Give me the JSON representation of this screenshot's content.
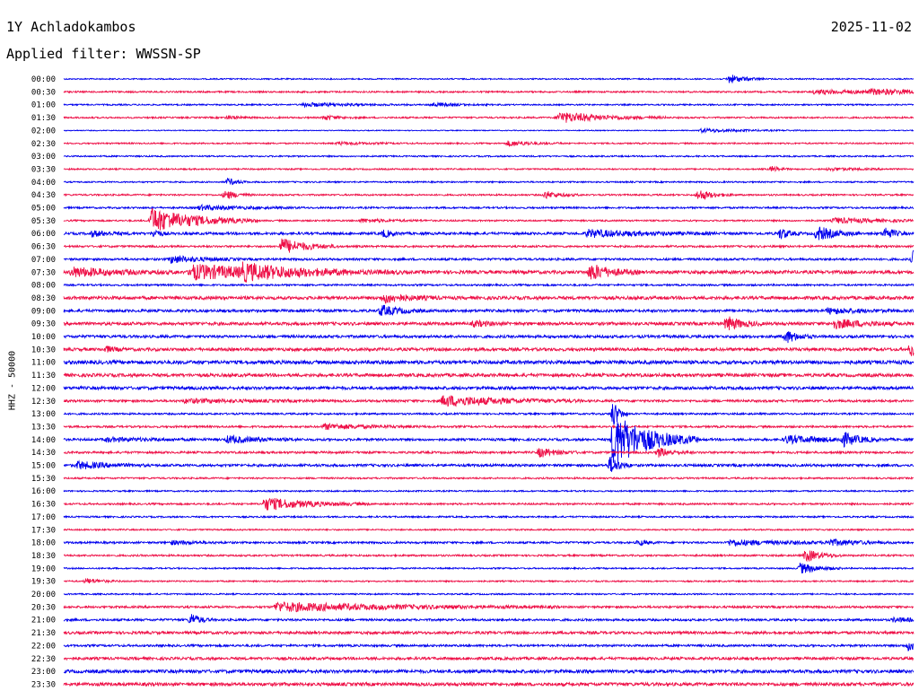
{
  "header": {
    "station": "1Y Achladokambos",
    "date": "2025-11-02",
    "filter": "Applied filter: WWSSN-SP",
    "channel": "HHZ - 50000"
  },
  "colors": {
    "even_row": "#0000ee",
    "odd_row": "#ee1148"
  },
  "chart_data": {
    "type": "line",
    "title": "1Y Achladokambos",
    "subtitle": "Applied filter: WWSSN-SP",
    "ylabel": "HHZ - 50000",
    "xlabel": "",
    "row_minutes": 30,
    "time_range_min": [
      0,
      30
    ],
    "rows": [
      {
        "label": "00:00",
        "noise": 0.7,
        "events": [
          {
            "t": 23.5,
            "amp": 5,
            "dur": 0.5
          }
        ]
      },
      {
        "label": "00:30",
        "noise": 0.9,
        "events": [
          {
            "t": 26.5,
            "amp": 2,
            "dur": 3
          },
          {
            "t": 28.5,
            "amp": 2,
            "dur": 2.5
          }
        ]
      },
      {
        "label": "01:00",
        "noise": 0.8,
        "events": [
          {
            "t": 8.5,
            "amp": 2,
            "dur": 1.5
          },
          {
            "t": 13,
            "amp": 2,
            "dur": 0.8
          }
        ]
      },
      {
        "label": "01:30",
        "noise": 0.9,
        "events": [
          {
            "t": 17.5,
            "amp": 6,
            "dur": 1.5
          },
          {
            "t": 9.2,
            "amp": 2.5,
            "dur": 0.5
          },
          {
            "t": 5.8,
            "amp": 2,
            "dur": 0.4
          }
        ]
      },
      {
        "label": "02:00",
        "noise": 0.5,
        "events": [
          {
            "t": 22.5,
            "amp": 2,
            "dur": 1.5
          }
        ]
      },
      {
        "label": "02:30",
        "noise": 0.8,
        "events": [
          {
            "t": 15.7,
            "amp": 3,
            "dur": 0.8
          },
          {
            "t": 9.7,
            "amp": 1.5,
            "dur": 1
          }
        ]
      },
      {
        "label": "03:00",
        "noise": 0.8,
        "events": []
      },
      {
        "label": "03:30",
        "noise": 0.8,
        "events": [
          {
            "t": 25,
            "amp": 3,
            "dur": 0.3
          },
          {
            "t": 27,
            "amp": 1.5,
            "dur": 1
          }
        ]
      },
      {
        "label": "04:00",
        "noise": 0.8,
        "events": [
          {
            "t": 5.8,
            "amp": 4,
            "dur": 0.3
          }
        ]
      },
      {
        "label": "04:30",
        "noise": 0.9,
        "events": [
          {
            "t": 5.7,
            "amp": 5,
            "dur": 0.4
          },
          {
            "t": 17,
            "amp": 4,
            "dur": 0.5
          },
          {
            "t": 22.4,
            "amp": 6,
            "dur": 0.5
          }
        ]
      },
      {
        "label": "05:00",
        "noise": 1.0,
        "events": [
          {
            "t": 4.8,
            "amp": 2.5,
            "dur": 1.5
          }
        ]
      },
      {
        "label": "05:30",
        "noise": 0.9,
        "events": [
          {
            "t": 3.1,
            "amp": 14,
            "dur": 1.5
          },
          {
            "t": 27.2,
            "amp": 3,
            "dur": 1.5
          },
          {
            "t": 10.5,
            "amp": 2,
            "dur": 1
          }
        ]
      },
      {
        "label": "06:00",
        "noise": 1.4,
        "events": [
          {
            "t": 26.6,
            "amp": 8,
            "dur": 0.6
          },
          {
            "t": 25.3,
            "amp": 6,
            "dur": 0.3
          },
          {
            "t": 29,
            "amp": 7,
            "dur": 0.3
          },
          {
            "t": 18.5,
            "amp": 4,
            "dur": 1.8
          },
          {
            "t": 1,
            "amp": 3,
            "dur": 0.6
          },
          {
            "t": 11.3,
            "amp": 4,
            "dur": 0.3
          },
          {
            "t": 3.2,
            "amp": 5,
            "dur": 0.2
          }
        ]
      },
      {
        "label": "06:30",
        "noise": 1.1,
        "events": [
          {
            "t": 7.7,
            "amp": 9,
            "dur": 0.8
          }
        ]
      },
      {
        "label": "07:00",
        "noise": 1.2,
        "events": [
          {
            "t": 30,
            "amp": 10,
            "dur": 0.4
          },
          {
            "t": 3.8,
            "amp": 4,
            "dur": 1
          }
        ]
      },
      {
        "label": "07:30",
        "noise": 1.8,
        "events": [
          {
            "t": 4.5,
            "amp": 8,
            "dur": 3
          },
          {
            "t": 18.6,
            "amp": 9,
            "dur": 0.7
          },
          {
            "t": 6.3,
            "amp": 6,
            "dur": 1.5
          },
          {
            "t": 0.3,
            "amp": 5,
            "dur": 1.5
          }
        ]
      },
      {
        "label": "08:00",
        "noise": 1.0,
        "events": []
      },
      {
        "label": "08:30",
        "noise": 1.8,
        "events": [
          {
            "t": 11.3,
            "amp": 5,
            "dur": 0.8
          }
        ]
      },
      {
        "label": "09:00",
        "noise": 1.5,
        "events": [
          {
            "t": 11.2,
            "amp": 6,
            "dur": 0.6
          },
          {
            "t": 27,
            "amp": 3,
            "dur": 1
          }
        ]
      },
      {
        "label": "09:30",
        "noise": 1.7,
        "events": [
          {
            "t": 23.4,
            "amp": 8,
            "dur": 0.5
          },
          {
            "t": 27.2,
            "amp": 5,
            "dur": 1
          },
          {
            "t": 14.5,
            "amp": 3,
            "dur": 0.5
          }
        ]
      },
      {
        "label": "10:00",
        "noise": 1.5,
        "events": [
          {
            "t": 25.5,
            "amp": 7,
            "dur": 0.4
          }
        ]
      },
      {
        "label": "10:30",
        "noise": 1.7,
        "events": [
          {
            "t": 29.9,
            "amp": 7,
            "dur": 0.4
          },
          {
            "t": 1.5,
            "amp": 3,
            "dur": 0.3
          }
        ]
      },
      {
        "label": "11:00",
        "noise": 2.0,
        "events": []
      },
      {
        "label": "11:30",
        "noise": 1.8,
        "events": []
      },
      {
        "label": "12:00",
        "noise": 1.7,
        "events": []
      },
      {
        "label": "12:30",
        "noise": 1.3,
        "events": [
          {
            "t": 13.4,
            "amp": 6,
            "dur": 2
          },
          {
            "t": 4.3,
            "amp": 2,
            "dur": 2
          }
        ]
      },
      {
        "label": "13:00",
        "noise": 1.0,
        "events": [
          {
            "t": 19.4,
            "amp": 16,
            "dur": 0.2
          }
        ]
      },
      {
        "label": "13:30",
        "noise": 1.1,
        "events": [
          {
            "t": 9.2,
            "amp": 3,
            "dur": 1.5
          }
        ]
      },
      {
        "label": "14:00",
        "noise": 1.3,
        "events": [
          {
            "t": 19.4,
            "amp": 30,
            "dur": 1.2
          },
          {
            "t": 27.5,
            "amp": 7,
            "dur": 0.5
          },
          {
            "t": 25.5,
            "amp": 4,
            "dur": 1.5
          },
          {
            "t": 5.8,
            "amp": 4,
            "dur": 1
          },
          {
            "t": 1.5,
            "amp": 2,
            "dur": 1.5
          }
        ]
      },
      {
        "label": "14:30",
        "noise": 1.2,
        "events": [
          {
            "t": 16.8,
            "amp": 5,
            "dur": 0.6
          },
          {
            "t": 21,
            "amp": 5,
            "dur": 0.5
          }
        ]
      },
      {
        "label": "15:00",
        "noise": 1.4,
        "events": [
          {
            "t": 0.5,
            "amp": 4,
            "dur": 1
          },
          {
            "t": 19.3,
            "amp": 10,
            "dur": 0.3
          }
        ]
      },
      {
        "label": "15:30",
        "noise": 0.9,
        "events": []
      },
      {
        "label": "16:00",
        "noise": 0.8,
        "events": []
      },
      {
        "label": "16:30",
        "noise": 1.0,
        "events": [
          {
            "t": 7.1,
            "amp": 7,
            "dur": 1.5
          }
        ]
      },
      {
        "label": "17:00",
        "noise": 0.9,
        "events": []
      },
      {
        "label": "17:30",
        "noise": 0.8,
        "events": []
      },
      {
        "label": "18:00",
        "noise": 1.1,
        "events": [
          {
            "t": 20.3,
            "amp": 3,
            "dur": 0.3
          },
          {
            "t": 23.5,
            "amp": 3,
            "dur": 2
          },
          {
            "t": 27,
            "amp": 3,
            "dur": 1
          },
          {
            "t": 3.8,
            "amp": 2,
            "dur": 0.8
          }
        ]
      },
      {
        "label": "18:30",
        "noise": 1.0,
        "events": [
          {
            "t": 26.2,
            "amp": 7,
            "dur": 0.5
          }
        ]
      },
      {
        "label": "19:00",
        "noise": 0.8,
        "events": [
          {
            "t": 26,
            "amp": 6,
            "dur": 0.6
          }
        ]
      },
      {
        "label": "19:30",
        "noise": 0.8,
        "events": [
          {
            "t": 0.8,
            "amp": 3,
            "dur": 0.5
          }
        ]
      },
      {
        "label": "20:00",
        "noise": 0.8,
        "events": []
      },
      {
        "label": "20:30",
        "noise": 1.2,
        "events": [
          {
            "t": 7.5,
            "amp": 5,
            "dur": 4
          }
        ]
      },
      {
        "label": "21:00",
        "noise": 1.2,
        "events": [
          {
            "t": 4.5,
            "amp": 7,
            "dur": 0.3
          },
          {
            "t": 29.3,
            "amp": 2,
            "dur": 1
          }
        ]
      },
      {
        "label": "21:30",
        "noise": 1.5,
        "events": []
      },
      {
        "label": "22:00",
        "noise": 1.2,
        "events": [
          {
            "t": 29.8,
            "amp": 5,
            "dur": 0.5
          }
        ]
      },
      {
        "label": "22:30",
        "noise": 1.5,
        "events": []
      },
      {
        "label": "23:00",
        "noise": 1.8,
        "events": []
      },
      {
        "label": "23:30",
        "noise": 1.8,
        "events": []
      }
    ]
  }
}
